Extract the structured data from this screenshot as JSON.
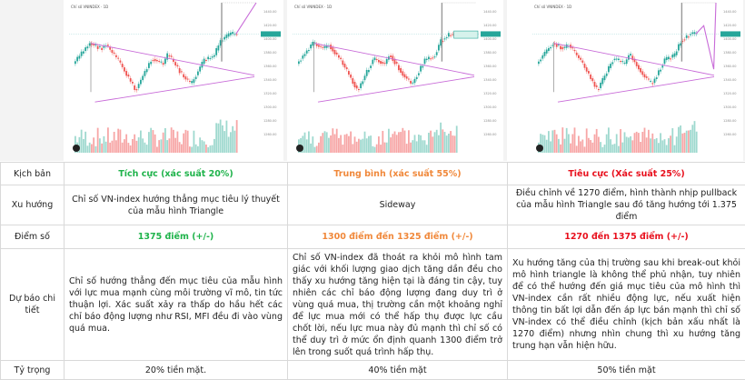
{
  "charts": [
    {
      "title": "Chỉ số VNINDEX · 1D",
      "scenario": "positive"
    },
    {
      "title": "Chỉ số VNINDEX · 1D",
      "scenario": "sideway"
    },
    {
      "title": "Chỉ số VNINDEX · 1D",
      "scenario": "negative"
    }
  ],
  "colors": {
    "positive": "#1fb34b",
    "neutral": "#f0883a",
    "negative": "#e8101d",
    "pattern": "#c86bd8",
    "up": "#26a69a",
    "down": "#ef5350"
  },
  "rows": {
    "scenario": {
      "label": "Kịch bản",
      "values": [
        "Tích cực (xác suất 20%)",
        "Trung bình (xác suất 55%)",
        "Tiêu cực (Xác suất 25%)"
      ]
    },
    "trend": {
      "label": "Xu hướng",
      "values": [
        "Chỉ số VN-index hướng thẳng mục tiêu lý thuyết của mẫu hình Triangle",
        "Sideway",
        "Điều chỉnh về 1270 điểm, hình thành nhịp pullback của mẫu hình Triangle sau đó tăng hướng tới 1.375 điểm"
      ]
    },
    "points": {
      "label": "Điểm số",
      "values": [
        "1375 điểm (+/-)",
        "1300 điểm đến 1325 điểm (+/-)",
        "1270 đến 1375 điểm (+/-)"
      ]
    },
    "forecast": {
      "label": "Dự báo chi tiết",
      "values": [
        "Chỉ số hướng thẳng đến mục tiêu của mẫu hình với lực mua mạnh cùng môi trường vĩ mô, tin tức thuận lợi. Xác suất xảy ra thấp do hầu hết các chỉ báo động lượng như RSI, MFI đều đi vào vùng quá mua.",
        "Chỉ số VN-index đã thoát ra khỏi mô hình tam giác với khối lượng giao dịch tăng dần đều cho thấy xu hướng tăng hiện tại là đáng tin cậy, tuy nhiên các chỉ báo động lượng đang duy trì ở vùng quá mua, thị trường cần một khoảng nghỉ để lực mua mới có thể hấp thụ được lực cầu chốt lời, nếu lực mua này đủ mạnh thì chỉ số có thể duy trì ở mức ổn định quanh 1300 điểm trở lên trong suốt quá trình hấp thụ.",
        "Xu hướng tăng của thị trường sau khi break-out khỏi mô hình triangle là không thể phủ nhận, tuy nhiên để có thể hướng đến giá mục tiêu của mô hình thì VN-index cần rất nhiều động lực, nếu xuất hiện thông tin bất lợi dẫn đến áp lực bán mạnh thì chỉ số VN-index có thể điều chỉnh (kịch bản xấu nhất là 1270 điểm) nhưng nhìn chung thì xu hướng tăng trung hạn vẫn hiện hữu."
      ]
    },
    "weight": {
      "label": "Tỷ trọng",
      "values": [
        "20% tiền mặt.",
        "40%  tiền mặt",
        "50% tiền mặt"
      ]
    }
  }
}
